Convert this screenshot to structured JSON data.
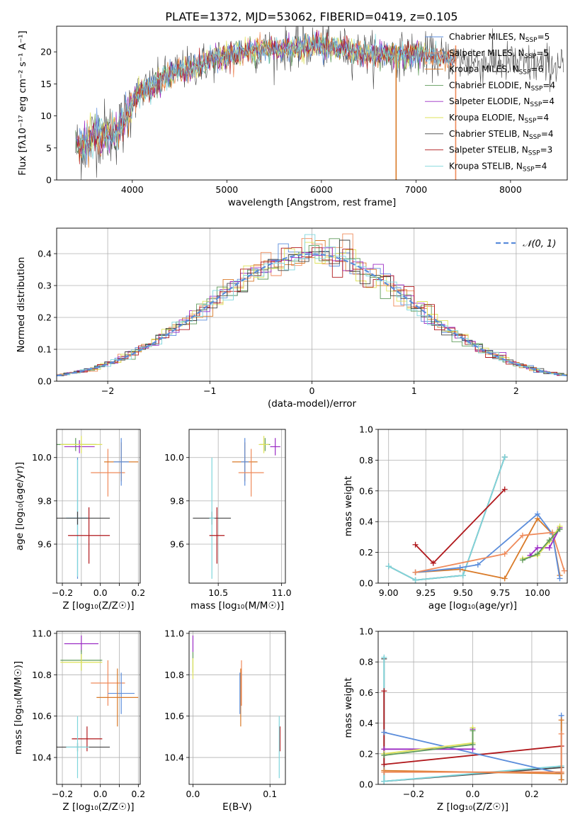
{
  "figure": {
    "title": "PLATE=1372, MJD=53062, FIBERID=0419, z=0.105"
  },
  "colors": {
    "chabrier_miles": "#5b8ddb",
    "salpeter_miles": "#ef8a5a",
    "kroupa_miles": "#d97a28",
    "chabrier_elodie": "#5f9b5a",
    "salpeter_elodie": "#9b2bc4",
    "kroupa_elodie": "#dfe35a",
    "chabrier_stelib": "#444444",
    "salpeter_stelib": "#b0181c",
    "kroupa_stelib": "#7fd6dc",
    "normal_fit": "#5b8ddb",
    "grid": "#b0b0b0"
  },
  "chart_data": [
    {
      "id": "spectrum",
      "type": "line",
      "xlabel": "wavelength [Angstrom, rest frame]",
      "ylabel": "Flux [fλ10⁻¹⁷ erg cm⁻² s⁻¹ A⁻¹]",
      "xlim": [
        3200,
        8600
      ],
      "ylim": [
        0,
        24
      ],
      "xticks": [
        4000,
        5000,
        6000,
        7000,
        8000
      ],
      "yticks": [
        0,
        5,
        10,
        15,
        20
      ],
      "grid": false,
      "legend_position": "top-right",
      "legend": [
        {
          "label": "Chabrier MILES, N",
          "sub": "SSP",
          "suffix": "=5",
          "color": "chabrier_miles"
        },
        {
          "label": "Salpeter MILES, N",
          "sub": "SSP",
          "suffix": "=5",
          "color": "salpeter_miles"
        },
        {
          "label": "Kroupa MILES, N",
          "sub": "SSP",
          "suffix": "=6",
          "color": "kroupa_miles"
        },
        {
          "label": "Chabrier ELODIE, N",
          "sub": "SSP",
          "suffix": "=4",
          "color": "chabrier_elodie"
        },
        {
          "label": "Salpeter ELODIE, N",
          "sub": "SSP",
          "suffix": "=4",
          "color": "salpeter_elodie"
        },
        {
          "label": "Kroupa ELODIE, N",
          "sub": "SSP",
          "suffix": "=4",
          "color": "kroupa_elodie"
        },
        {
          "label": "Chabrier STELIB, N",
          "sub": "SSP",
          "suffix": "=4",
          "color": "chabrier_stelib"
        },
        {
          "label": "Salpeter STELIB, N",
          "sub": "SSP",
          "suffix": "=3",
          "color": "salpeter_stelib"
        },
        {
          "label": "Kroupa STELIB, N",
          "sub": "SSP",
          "suffix": "=4",
          "color": "kroupa_stelib"
        }
      ],
      "envelope": {
        "x": [
          3400,
          3500,
          3600,
          3700,
          3800,
          3900,
          4000,
          4100,
          4200,
          4300,
          4400,
          4500,
          4600,
          4800,
          5000,
          5200,
          5400,
          5600,
          5800,
          6000,
          6200,
          6400,
          6600,
          6800,
          7000,
          7200,
          7400,
          7600,
          7800,
          8000,
          8200,
          8400,
          8550
        ],
        "y": [
          5.0,
          5.5,
          7.0,
          7.5,
          7.0,
          8.5,
          12.5,
          14.0,
          14.5,
          15.5,
          16.5,
          17.0,
          17.5,
          18.5,
          19.5,
          20.0,
          20.3,
          20.5,
          20.8,
          21.0,
          20.5,
          20.0,
          19.5,
          19.5,
          19.8,
          19.2,
          18.8,
          18.5,
          18.4,
          18.3,
          18.0,
          18.0,
          18.0
        ]
      },
      "spikes": [
        {
          "x": 6790,
          "color": "kroupa_miles"
        },
        {
          "x": 7420,
          "color": "salpeter_miles"
        }
      ]
    },
    {
      "id": "residual_histogram",
      "type": "line",
      "xlabel": "(data-model)/error",
      "ylabel": "Normed distribution",
      "xlim": [
        -2.5,
        2.5
      ],
      "ylim": [
        0,
        0.48
      ],
      "xticks": [
        -2,
        -1,
        0,
        1,
        2
      ],
      "yticks": [
        0.0,
        0.1,
        0.2,
        0.3,
        0.4
      ],
      "grid": true,
      "bin_width": 0.1,
      "bin_start": -2.5,
      "legend_position": "top-right",
      "legend_label": "𝒩(0, 1)",
      "gaussian": {
        "mean": 0,
        "sigma": 1
      }
    },
    {
      "id": "age_vs_Z",
      "type": "scatter",
      "xlabel": "Z [log₁₀(Z/Z☉)]",
      "ylabel": "age  [log₁₀(age/yr)]",
      "xlim": [
        -0.23,
        0.21
      ],
      "ylim": [
        9.42,
        10.13
      ],
      "xticks": [
        -0.2,
        -0.1,
        0.0,
        0.1,
        0.2
      ],
      "xticklabels": [
        "−0.2",
        "0.0",
        "0.2"
      ],
      "xticklabel_values": [
        -0.2,
        0.0,
        0.2
      ],
      "yticks": [
        9.6,
        9.8,
        10.0
      ],
      "grid": true,
      "points": [
        {
          "x": -0.13,
          "xerr": 0.11,
          "y": 10.06,
          "yerr": 0.03,
          "color": "chabrier_elodie"
        },
        {
          "x": -0.11,
          "xerr": 0.08,
          "y": 10.05,
          "yerr": 0.03,
          "color": "salpeter_elodie"
        },
        {
          "x": -0.1,
          "xerr": 0.11,
          "y": 10.06,
          "yerr": 0.04,
          "color": "kroupa_elodie"
        },
        {
          "x": 0.04,
          "xerr": 0.09,
          "y": 9.93,
          "yerr": 0.11,
          "color": "salpeter_miles"
        },
        {
          "x": 0.11,
          "xerr": 0.09,
          "y": 9.98,
          "yerr": 0.09,
          "color": "kroupa_miles"
        },
        {
          "x": 0.11,
          "xerr": 0.04,
          "y": 9.98,
          "yerr": 0.11,
          "color": "chabrier_miles"
        },
        {
          "x": -0.12,
          "xerr": 0.06,
          "y": 9.72,
          "yerr": 0.28,
          "color": "chabrier_miles"
        },
        {
          "x": -0.12,
          "xerr": 0.06,
          "y": 9.72,
          "yerr": 0.27,
          "color": "kroupa_stelib"
        },
        {
          "x": -0.12,
          "xerr": 0.17,
          "y": 9.72,
          "yerr": 0.03,
          "color": "chabrier_stelib"
        },
        {
          "x": -0.06,
          "xerr": 0.11,
          "y": 9.64,
          "yerr": 0.13,
          "color": "salpeter_stelib"
        }
      ]
    },
    {
      "id": "age_vs_mass",
      "type": "scatter",
      "xlabel": "mass [log₁₀(M/M☉)]",
      "ylabel": "",
      "xlim": [
        10.27,
        11.03
      ],
      "ylim": [
        9.42,
        10.13
      ],
      "xticks": [
        10.5,
        11.0
      ],
      "yticks": [
        9.6,
        9.8,
        10.0
      ],
      "grid": true,
      "points": [
        {
          "x": 10.71,
          "xerr": 0.1,
          "y": 9.98,
          "yerr": 0.09,
          "color": "kroupa_miles"
        },
        {
          "x": 10.71,
          "xerr": 0.03,
          "y": 9.98,
          "yerr": 0.11,
          "color": "chabrier_miles"
        },
        {
          "x": 10.76,
          "xerr": 0.1,
          "y": 9.93,
          "yerr": 0.11,
          "color": "salpeter_miles"
        },
        {
          "x": 10.87,
          "xerr": 0.04,
          "y": 10.06,
          "yerr": 0.03,
          "color": "chabrier_elodie"
        },
        {
          "x": 10.86,
          "xerr": 0.04,
          "y": 10.06,
          "yerr": 0.04,
          "color": "kroupa_elodie"
        },
        {
          "x": 10.95,
          "xerr": 0.04,
          "y": 10.05,
          "yerr": 0.04,
          "color": "salpeter_elodie"
        },
        {
          "x": 10.45,
          "xerr": 0.15,
          "y": 9.72,
          "yerr": 0.03,
          "color": "chabrier_stelib"
        },
        {
          "x": 10.45,
          "xerr": 0.02,
          "y": 9.72,
          "yerr": 0.28,
          "color": "kroupa_stelib"
        },
        {
          "x": 10.49,
          "xerr": 0.06,
          "y": 9.64,
          "yerr": 0.13,
          "color": "salpeter_stelib"
        }
      ]
    },
    {
      "id": "weight_vs_age",
      "type": "line",
      "xlabel": "age  [log₁₀(age/yr)]",
      "ylabel": "mass weight",
      "xlim": [
        8.93,
        10.2
      ],
      "ylim": [
        0,
        1.0
      ],
      "xticks": [
        9.0,
        9.25,
        9.5,
        9.75,
        10.0
      ],
      "yticks": [
        0.0,
        0.2,
        0.4,
        0.6,
        0.8,
        1.0
      ],
      "grid": true,
      "series": [
        {
          "color": "chabrier_stelib",
          "x": [
            9.0,
            9.18,
            9.5,
            9.78
          ],
          "y": [
            0.11,
            0.02,
            0.05,
            0.82
          ]
        },
        {
          "color": "kroupa_stelib",
          "x": [
            9.0,
            9.18,
            9.5,
            9.78
          ],
          "y": [
            0.11,
            0.02,
            0.05,
            0.82
          ]
        },
        {
          "color": "salpeter_stelib",
          "x": [
            9.18,
            9.3,
            9.78
          ],
          "y": [
            0.25,
            0.13,
            0.61
          ]
        },
        {
          "color": "kroupa_miles",
          "x": [
            9.18,
            9.48,
            9.78,
            10.0,
            10.1,
            10.15
          ],
          "y": [
            0.07,
            0.09,
            0.03,
            0.42,
            0.32,
            0.05
          ]
        },
        {
          "color": "chabrier_miles",
          "x": [
            9.18,
            9.48,
            9.6,
            10.0,
            10.1,
            10.15
          ],
          "y": [
            0.07,
            0.1,
            0.12,
            0.45,
            0.32,
            0.03
          ]
        },
        {
          "color": "salpeter_miles",
          "x": [
            9.18,
            9.78,
            9.9,
            10.1,
            10.18
          ],
          "y": [
            0.07,
            0.19,
            0.31,
            0.33,
            0.08
          ]
        },
        {
          "color": "salpeter_elodie",
          "x": [
            9.95,
            10.0,
            10.08,
            10.15
          ],
          "y": [
            0.18,
            0.23,
            0.23,
            0.36
          ]
        },
        {
          "color": "kroupa_elodie",
          "x": [
            9.9,
            10.0,
            10.08,
            10.15
          ],
          "y": [
            0.16,
            0.18,
            0.27,
            0.37
          ]
        },
        {
          "color": "chabrier_elodie",
          "x": [
            9.9,
            10.0,
            10.08,
            10.15
          ],
          "y": [
            0.15,
            0.19,
            0.28,
            0.35
          ]
        }
      ]
    },
    {
      "id": "mass_vs_Z",
      "type": "scatter",
      "xlabel": "Z [log₁₀(Z/Z☉)]",
      "ylabel": "mass [log₁₀(M/M☉)]",
      "xlim": [
        -0.23,
        0.21
      ],
      "ylim": [
        10.27,
        11.01
      ],
      "xticks": [
        -0.2,
        -0.1,
        0.0,
        0.1,
        0.2
      ],
      "xticklabels": [
        "−0.2",
        "0.0",
        "0.2"
      ],
      "xticklabel_values": [
        -0.2,
        0.0,
        0.2
      ],
      "yticks": [
        10.4,
        10.6,
        10.8,
        11.0
      ],
      "grid": true,
      "points": [
        {
          "x": -0.1,
          "xerr": 0.09,
          "y": 10.95,
          "yerr": 0.04,
          "color": "salpeter_elodie"
        },
        {
          "x": -0.1,
          "xerr": 0.11,
          "y": 10.87,
          "yerr": 0.05,
          "color": "chabrier_elodie"
        },
        {
          "x": -0.1,
          "xerr": 0.11,
          "y": 10.86,
          "yerr": 0.04,
          "color": "kroupa_elodie"
        },
        {
          "x": 0.04,
          "xerr": 0.09,
          "y": 10.76,
          "yerr": 0.11,
          "color": "salpeter_miles"
        },
        {
          "x": 0.11,
          "xerr": 0.07,
          "y": 10.71,
          "yerr": 0.1,
          "color": "chabrier_miles"
        },
        {
          "x": 0.09,
          "xerr": 0.11,
          "y": 10.69,
          "yerr": 0.14,
          "color": "kroupa_miles"
        },
        {
          "x": -0.07,
          "xerr": 0.08,
          "y": 10.49,
          "yerr": 0.06,
          "color": "salpeter_stelib"
        },
        {
          "x": -0.12,
          "xerr": 0.17,
          "y": 10.45,
          "yerr": 0.02,
          "color": "chabrier_stelib"
        },
        {
          "x": -0.12,
          "xerr": 0.06,
          "y": 10.45,
          "yerr": 0.15,
          "color": "kroupa_stelib"
        }
      ]
    },
    {
      "id": "mass_vs_ebv",
      "type": "scatter",
      "xlabel": "E(B-V)",
      "ylabel": "",
      "xlim": [
        -0.005,
        0.12
      ],
      "ylim": [
        10.27,
        11.01
      ],
      "xticks": [
        0.0,
        0.1
      ],
      "yticks": [
        10.4,
        10.6,
        10.8,
        11.0
      ],
      "grid": true,
      "points": [
        {
          "x": 0.0,
          "xerr": 0.0,
          "y": 10.95,
          "yerr": 0.04,
          "color": "salpeter_elodie"
        },
        {
          "x": 0.0,
          "xerr": 0.0,
          "y": 10.86,
          "yerr": 0.05,
          "color": "chabrier_elodie"
        },
        {
          "x": 0.0,
          "xerr": 0.0,
          "y": 10.83,
          "yerr": 0.05,
          "color": "kroupa_elodie"
        },
        {
          "x": 0.063,
          "xerr": 0.0,
          "y": 10.76,
          "yerr": 0.11,
          "color": "salpeter_miles"
        },
        {
          "x": 0.062,
          "xerr": 0.0,
          "y": 10.69,
          "yerr": 0.14,
          "color": "kroupa_miles"
        },
        {
          "x": 0.061,
          "xerr": 0.0,
          "y": 10.71,
          "yerr": 0.1,
          "color": "chabrier_miles"
        },
        {
          "x": 0.113,
          "xerr": 0.0,
          "y": 10.49,
          "yerr": 0.06,
          "color": "salpeter_stelib"
        },
        {
          "x": 0.112,
          "xerr": 0.0,
          "y": 10.45,
          "yerr": 0.15,
          "color": "kroupa_stelib"
        }
      ]
    },
    {
      "id": "weight_vs_Z",
      "type": "line",
      "xlabel": "Z [log₁₀(Z/Z☉)]",
      "ylabel": "mass weight",
      "xlim": [
        -0.32,
        0.32
      ],
      "ylim": [
        0,
        1.0
      ],
      "xticks": [
        -0.2,
        0.0,
        0.2
      ],
      "xticklabels": [
        "−0.2",
        "0.0",
        "0.2"
      ],
      "xticklabel_values": [
        -0.2,
        0.0,
        0.2
      ],
      "yticks": [
        0.0,
        0.2,
        0.4,
        0.6,
        0.8,
        1.0
      ],
      "grid": true,
      "series": [
        {
          "color": "chabrier_stelib",
          "x": [
            -0.3,
            -0.3,
            0.3
          ],
          "y": [
            0.82,
            0.02,
            0.11
          ]
        },
        {
          "color": "kroupa_stelib",
          "x": [
            -0.3,
            -0.3,
            0.3
          ],
          "y": [
            0.83,
            0.02,
            0.12
          ]
        },
        {
          "color": "salpeter_stelib",
          "x": [
            -0.3,
            -0.3,
            0.3
          ],
          "y": [
            0.61,
            0.13,
            0.25
          ]
        },
        {
          "color": "chabrier_miles",
          "x": [
            -0.3,
            0.3,
            0.3,
            0.3
          ],
          "y": [
            0.34,
            0.07,
            0.45,
            0.03
          ]
        },
        {
          "color": "kroupa_miles",
          "x": [
            -0.3,
            0.3,
            0.3,
            0.3
          ],
          "y": [
            0.09,
            0.07,
            0.42,
            0.03
          ]
        },
        {
          "color": "salpeter_miles",
          "x": [
            -0.3,
            0.3,
            0.3,
            0.3
          ],
          "y": [
            0.08,
            0.08,
            0.33,
            0.08
          ]
        },
        {
          "color": "salpeter_elodie",
          "x": [
            -0.3,
            0.0,
            0.0
          ],
          "y": [
            0.23,
            0.23,
            0.36
          ]
        },
        {
          "color": "kroupa_elodie",
          "x": [
            -0.3,
            0.0,
            0.0
          ],
          "y": [
            0.2,
            0.27,
            0.37
          ]
        },
        {
          "color": "chabrier_elodie",
          "x": [
            -0.3,
            0.0,
            0.0
          ],
          "y": [
            0.19,
            0.26,
            0.35
          ]
        }
      ]
    }
  ]
}
